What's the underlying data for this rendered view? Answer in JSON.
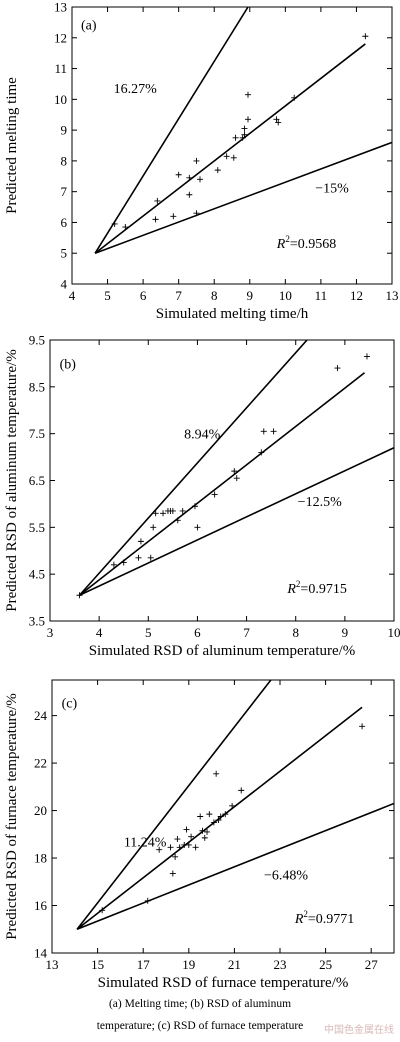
{
  "chart_data": [
    {
      "type": "scatter",
      "panel_label": "(a)",
      "xlabel": "Simulated melting time/h",
      "ylabel": "Predicted melting time",
      "xlim": [
        4,
        13
      ],
      "ylim": [
        4,
        13
      ],
      "xticks": [
        4,
        5,
        6,
        7,
        8,
        9,
        10,
        11,
        12,
        13
      ],
      "yticks": [
        4,
        5,
        6,
        7,
        8,
        9,
        10,
        11,
        12,
        13
      ],
      "upper_label": "16.27%",
      "lower_label": "−15%",
      "r2_label": "R",
      "r2_value": "=0.9568",
      "lines": [
        {
          "x": [
            4.65,
            8.95
          ],
          "y": [
            5.0,
            13.0
          ]
        },
        {
          "x": [
            4.65,
            12.25
          ],
          "y": [
            5.0,
            11.8
          ]
        },
        {
          "x": [
            4.65,
            13.0
          ],
          "y": [
            5.0,
            8.6
          ]
        }
      ],
      "points": [
        [
          5.2,
          5.95
        ],
        [
          5.5,
          5.85
        ],
        [
          6.35,
          6.1
        ],
        [
          6.4,
          6.7
        ],
        [
          6.85,
          6.2
        ],
        [
          7.0,
          7.55
        ],
        [
          7.3,
          6.9
        ],
        [
          7.3,
          7.45
        ],
        [
          7.5,
          6.3
        ],
        [
          7.5,
          8.0
        ],
        [
          7.6,
          7.4
        ],
        [
          8.1,
          7.7
        ],
        [
          8.35,
          8.15
        ],
        [
          8.55,
          8.1
        ],
        [
          8.6,
          8.75
        ],
        [
          8.8,
          8.75
        ],
        [
          8.85,
          8.85
        ],
        [
          8.85,
          9.05
        ],
        [
          8.95,
          9.35
        ],
        [
          8.95,
          10.15
        ],
        [
          9.75,
          9.35
        ],
        [
          9.8,
          9.25
        ],
        [
          10.25,
          10.05
        ],
        [
          12.25,
          12.05
        ]
      ]
    },
    {
      "type": "scatter",
      "panel_label": "(b)",
      "xlabel": "Simulated RSD of aluminum temperature/%",
      "ylabel": "Predicted RSD of aluminum temperature/%",
      "xlim": [
        3,
        10
      ],
      "ylim": [
        3.5,
        9.5
      ],
      "xticks": [
        3,
        4,
        5,
        6,
        7,
        8,
        9,
        10
      ],
      "yticks": [
        3.5,
        4.5,
        5.5,
        6.5,
        7.5,
        8.5,
        9.5
      ],
      "upper_label": "8.94%",
      "lower_label": "−12.5%",
      "r2_label": "R",
      "r2_value": "=0.9715",
      "lines": [
        {
          "x": [
            3.6,
            8.4
          ],
          "y": [
            4.05,
            9.7
          ]
        },
        {
          "x": [
            3.6,
            9.4
          ],
          "y": [
            4.05,
            8.8
          ]
        },
        {
          "x": [
            3.6,
            10.0
          ],
          "y": [
            4.05,
            7.2
          ]
        }
      ],
      "points": [
        [
          3.6,
          4.05
        ],
        [
          4.3,
          4.7
        ],
        [
          4.5,
          4.75
        ],
        [
          4.8,
          4.85
        ],
        [
          4.85,
          5.2
        ],
        [
          5.05,
          4.85
        ],
        [
          5.1,
          5.5
        ],
        [
          5.15,
          5.8
        ],
        [
          5.3,
          5.8
        ],
        [
          5.4,
          5.85
        ],
        [
          5.45,
          5.85
        ],
        [
          5.5,
          5.85
        ],
        [
          5.6,
          5.65
        ],
        [
          5.7,
          5.85
        ],
        [
          5.95,
          5.95
        ],
        [
          6.0,
          5.5
        ],
        [
          6.35,
          6.2
        ],
        [
          6.75,
          6.7
        ],
        [
          6.8,
          6.55
        ],
        [
          7.3,
          7.1
        ],
        [
          7.35,
          7.55
        ],
        [
          7.55,
          7.55
        ],
        [
          8.85,
          8.9
        ],
        [
          9.45,
          9.15
        ]
      ]
    },
    {
      "type": "scatter",
      "panel_label": "(c)",
      "xlabel": "Simulated RSD of furnace temperature/%",
      "ylabel": "Predicted RSD of furnace temperature/%",
      "xlim": [
        13,
        28
      ],
      "ylim": [
        14,
        25.5
      ],
      "xticks": [
        13,
        15,
        17,
        19,
        21,
        23,
        25,
        27
      ],
      "yticks": [
        14,
        16,
        18,
        20,
        22,
        24
      ],
      "upper_label": "11.24%",
      "lower_label": "−6.48%",
      "r2_label": "R",
      "r2_value": "=0.9771",
      "lines": [
        {
          "x": [
            14.1,
            22.6
          ],
          "y": [
            15.0,
            25.5
          ]
        },
        {
          "x": [
            14.1,
            26.6
          ],
          "y": [
            15.0,
            24.35
          ]
        },
        {
          "x": [
            14.1,
            28.0
          ],
          "y": [
            15.0,
            20.3
          ]
        }
      ],
      "points": [
        [
          15.2,
          15.8
        ],
        [
          17.2,
          16.2
        ],
        [
          17.7,
          18.35
        ],
        [
          18.2,
          18.45
        ],
        [
          18.3,
          17.35
        ],
        [
          18.4,
          18.05
        ],
        [
          18.5,
          18.8
        ],
        [
          18.6,
          18.45
        ],
        [
          18.8,
          18.55
        ],
        [
          18.9,
          19.2
        ],
        [
          19.0,
          18.55
        ],
        [
          19.1,
          18.9
        ],
        [
          19.3,
          18.45
        ],
        [
          19.5,
          19.75
        ],
        [
          19.6,
          19.15
        ],
        [
          19.7,
          18.85
        ],
        [
          19.8,
          19.1
        ],
        [
          19.9,
          19.85
        ],
        [
          20.1,
          19.5
        ],
        [
          20.2,
          21.55
        ],
        [
          20.3,
          19.6
        ],
        [
          20.4,
          19.75
        ],
        [
          20.6,
          19.85
        ],
        [
          20.9,
          20.2
        ],
        [
          21.3,
          20.85
        ],
        [
          26.6,
          23.55
        ]
      ]
    }
  ],
  "caption": {
    "line1": "(a) Melting time; (b) RSD of aluminum",
    "line2": "temperature; (c) RSD of furnace temperature"
  },
  "watermark": "中国色金属在线"
}
